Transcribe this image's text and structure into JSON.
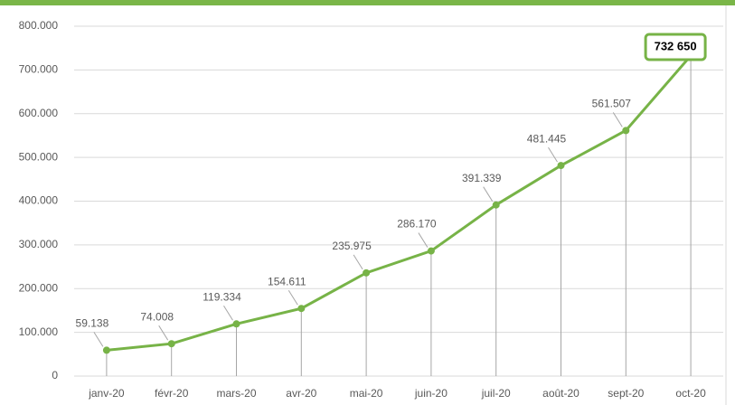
{
  "chart_data": {
    "type": "line",
    "categories": [
      "janv-20",
      "févr-20",
      "mars-20",
      "avr-20",
      "mai-20",
      "juin-20",
      "juil-20",
      "août-20",
      "sept-20",
      "oct-20"
    ],
    "series": [
      {
        "color": "#77b347",
        "values": [
          59138,
          74008,
          119334,
          154611,
          235975,
          286170,
          391339,
          481445,
          561507,
          732650
        ],
        "value_labels": [
          "59.138",
          "74.008",
          "119.334",
          "154.611",
          "235.975",
          "286.170",
          "391.339",
          "481.445",
          "561.507",
          "732 650"
        ]
      }
    ],
    "ylim": [
      0,
      800000
    ],
    "yticks": [
      0,
      {
        "value": 100000,
        "label": "100.000"
      },
      {
        "value": 200000,
        "label": "200.000"
      },
      {
        "value": 300000,
        "label": "300.000"
      },
      {
        "value": 400000,
        "label": "400.000"
      },
      {
        "value": 500000,
        "label": "500.000"
      },
      {
        "value": 600000,
        "label": "600.000"
      },
      {
        "value": 700000,
        "label": "700.000"
      },
      {
        "value": 800000,
        "label": "800.000"
      }
    ],
    "grid": true
  }
}
